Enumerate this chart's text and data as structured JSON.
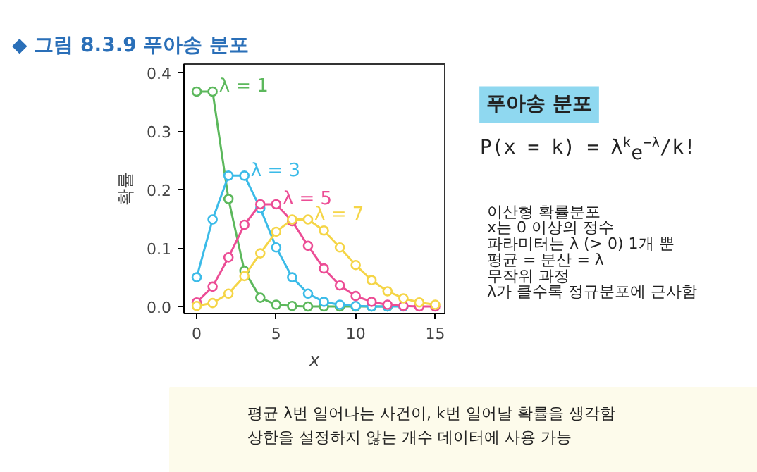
{
  "chart_data": {
    "type": "line",
    "title": "◆ 그림 8.3.9  푸아송 분포",
    "xlabel": "x",
    "ylabel": "확률",
    "x": [
      0,
      1,
      2,
      3,
      4,
      5,
      6,
      7,
      8,
      9,
      10,
      11,
      12,
      13,
      14,
      15
    ],
    "series": [
      {
        "name": "λ = 1",
        "color": "#5cb85c",
        "values": [
          0.368,
          0.368,
          0.184,
          0.061,
          0.015,
          0.003,
          0.001,
          0.0,
          0.0,
          0.0,
          0.0,
          0.0,
          0.0,
          null,
          null,
          null
        ]
      },
      {
        "name": "λ = 3",
        "color": "#3bbbe8",
        "values": [
          0.05,
          0.149,
          0.224,
          0.224,
          0.168,
          0.101,
          0.05,
          0.022,
          0.008,
          0.003,
          0.001,
          0.0,
          0.0,
          0.0,
          null,
          null
        ]
      },
      {
        "name": "λ = 5",
        "color": "#ec4d95",
        "values": [
          0.007,
          0.034,
          0.084,
          0.14,
          0.175,
          0.175,
          0.146,
          0.104,
          0.065,
          0.036,
          0.018,
          0.008,
          0.003,
          0.001,
          0.0,
          0.0
        ]
      },
      {
        "name": "λ = 7",
        "color": "#f5d547",
        "values": [
          0.001,
          0.006,
          0.022,
          0.052,
          0.091,
          0.128,
          0.149,
          0.149,
          0.13,
          0.101,
          0.071,
          0.045,
          0.026,
          0.014,
          0.007,
          0.003
        ]
      }
    ],
    "xlim": [
      -0.8,
      15.6
    ],
    "ylim": [
      -0.012,
      0.415
    ],
    "xticks": [
      0,
      5,
      10,
      15
    ],
    "yticks": [
      {
        "value": 0,
        "label": "0.0"
      },
      {
        "value": 0.1,
        "label": "0.1"
      },
      {
        "value": 0.2,
        "label": "0.2"
      },
      {
        "value": 0.3,
        "label": "0.3"
      },
      {
        "value": 0.4,
        "label": "0.4"
      }
    ],
    "marker": "circle",
    "line_style": "solid",
    "grid": false,
    "annotations": [
      "푸아송 분포",
      "P(x = k) = λ$^{k}$e$^{−λ}$/k!",
      "이산형 확률분포",
      "x는 0 이상의 정수",
      "파라미터는 λ (> 0) 1개 뿐",
      "평균 = 분산 = λ",
      "무작위 과정",
      "λ가 클수록 정규분포에 근사함",
      "평균 λ번 일어나는 사건이, k번 일어날 확률을 생각함",
      "상한을 설정하지 않는 개수 데이터에 사용 가능"
    ]
  }
}
